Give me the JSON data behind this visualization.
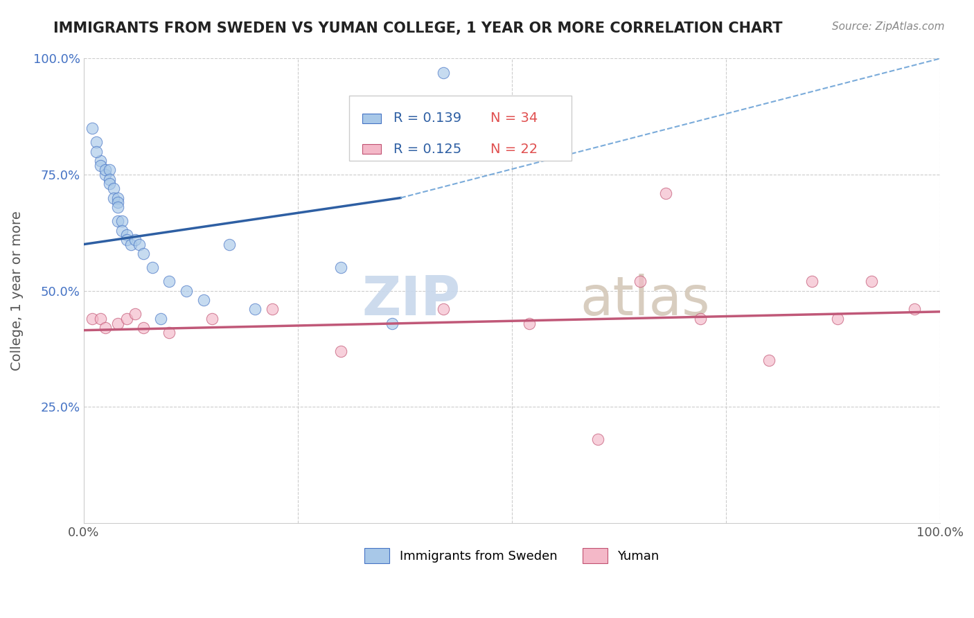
{
  "title": "IMMIGRANTS FROM SWEDEN VS YUMAN COLLEGE, 1 YEAR OR MORE CORRELATION CHART",
  "source": "Source: ZipAtlas.com",
  "ylabel": "College, 1 year or more",
  "xlim": [
    0.0,
    1.0
  ],
  "ylim": [
    0.0,
    1.0
  ],
  "blue_color": "#a8c8e8",
  "blue_edge_color": "#4472c4",
  "pink_color": "#f4b8c8",
  "pink_edge_color": "#c05070",
  "blue_line_color": "#2e5fa3",
  "pink_line_color": "#c05878",
  "dashed_line_color": "#7aabda",
  "background_color": "#ffffff",
  "grid_color": "#cccccc",
  "legend_label_blue": "Immigrants from Sweden",
  "legend_label_pink": "Yuman",
  "blue_points_x": [
    0.01,
    0.015,
    0.02,
    0.015,
    0.02,
    0.025,
    0.025,
    0.03,
    0.03,
    0.03,
    0.035,
    0.035,
    0.04,
    0.04,
    0.04,
    0.04,
    0.045,
    0.045,
    0.05,
    0.05,
    0.055,
    0.06,
    0.065,
    0.07,
    0.08,
    0.09,
    0.1,
    0.12,
    0.14,
    0.17,
    0.2,
    0.3,
    0.36,
    0.42
  ],
  "blue_points_y": [
    0.85,
    0.82,
    0.78,
    0.8,
    0.77,
    0.75,
    0.76,
    0.76,
    0.74,
    0.73,
    0.72,
    0.7,
    0.7,
    0.69,
    0.68,
    0.65,
    0.65,
    0.63,
    0.62,
    0.61,
    0.6,
    0.61,
    0.6,
    0.58,
    0.55,
    0.44,
    0.52,
    0.5,
    0.48,
    0.6,
    0.46,
    0.55,
    0.43,
    0.97
  ],
  "pink_points_x": [
    0.01,
    0.02,
    0.025,
    0.04,
    0.05,
    0.06,
    0.07,
    0.1,
    0.15,
    0.22,
    0.3,
    0.42,
    0.52,
    0.6,
    0.65,
    0.68,
    0.72,
    0.8,
    0.85,
    0.88,
    0.92,
    0.97
  ],
  "pink_points_y": [
    0.44,
    0.44,
    0.42,
    0.43,
    0.44,
    0.45,
    0.42,
    0.41,
    0.44,
    0.46,
    0.37,
    0.46,
    0.43,
    0.18,
    0.52,
    0.71,
    0.44,
    0.35,
    0.52,
    0.44,
    0.52,
    0.46
  ],
  "blue_line_x": [
    0.0,
    0.37
  ],
  "blue_line_y": [
    0.6,
    0.7
  ],
  "dashed_line_x": [
    0.37,
    1.0
  ],
  "dashed_line_y": [
    0.7,
    1.0
  ],
  "pink_line_x": [
    0.0,
    1.0
  ],
  "pink_line_y": [
    0.415,
    0.455
  ],
  "watermark_zip_color": "#c8d8ec",
  "watermark_atlas_color": "#d4c8b8",
  "y_tick_color": "#4472c4"
}
